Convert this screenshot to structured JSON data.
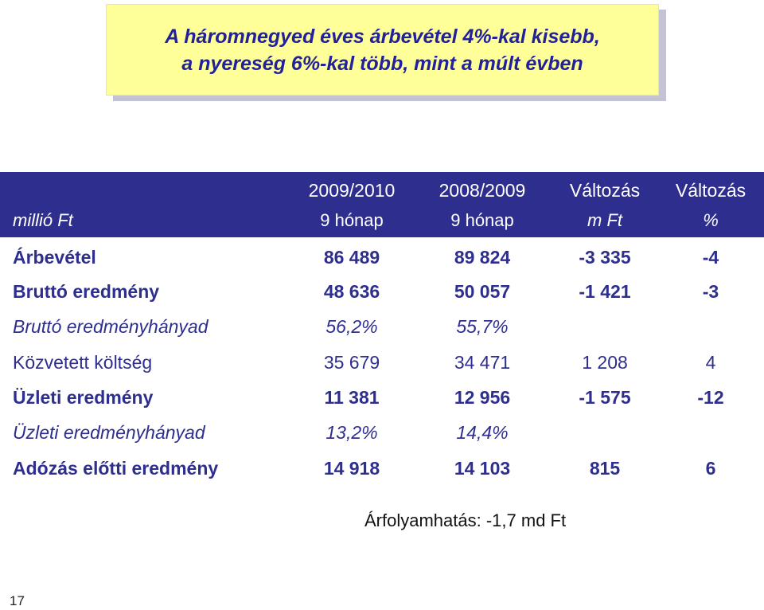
{
  "title": {
    "line1": "A háromnegyed éves árbevétel 4%-kal kisebb,",
    "line2": "a nyereség 6%-kal több, mint a múlt évben"
  },
  "table": {
    "unit_label": "millió Ft",
    "columns": [
      {
        "top": "2009/2010",
        "bottom": "9 hónap"
      },
      {
        "top": "2008/2009",
        "bottom": "9 hónap"
      },
      {
        "top": "Változás",
        "bottom": "m Ft"
      },
      {
        "top": "Változás",
        "bottom": "%"
      }
    ],
    "rows": [
      {
        "label": "Árbevétel",
        "values": [
          "86 489",
          "89 824",
          "-3 335",
          "-4"
        ]
      },
      {
        "label": "Bruttó eredmény",
        "values": [
          "48 636",
          "50 057",
          "-1 421",
          "-3"
        ]
      },
      {
        "label": "Bruttó eredményhányad",
        "values": [
          "56,2%",
          "55,7%",
          "",
          ""
        ]
      },
      {
        "label": "Közvetett költség",
        "values": [
          "35 679",
          "34 471",
          "1 208",
          "4"
        ]
      },
      {
        "label": "Üzleti eredmény",
        "values": [
          "11 381",
          "12 956",
          "-1 575",
          "-12"
        ]
      },
      {
        "label": "Üzleti eredményhányad",
        "values": [
          "13,2%",
          "14,4%",
          "",
          ""
        ]
      },
      {
        "label": "Adózás előtti eredmény",
        "values": [
          "14 918",
          "14 103",
          "815",
          "6"
        ]
      }
    ]
  },
  "note": "Árfolyamhatás: -1,7 md Ft",
  "page_number": "17",
  "colors": {
    "header_bg": "#2e2e8e",
    "text": "#2e2e8e",
    "title_bg": "#ffff9a",
    "title_text": "#21219b"
  }
}
